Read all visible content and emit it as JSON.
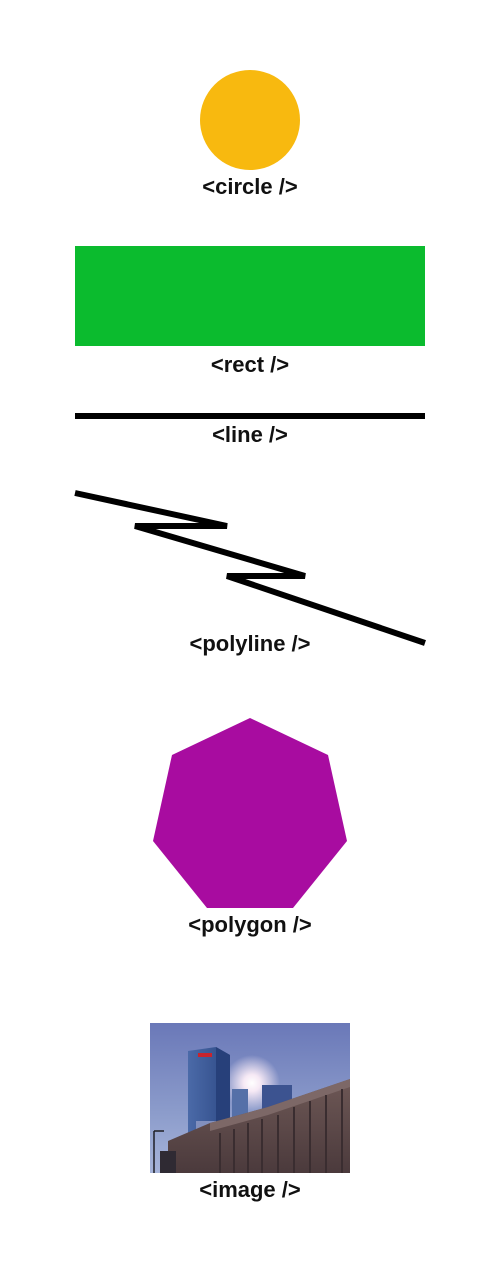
{
  "colors": {
    "circle": "#F8B90F",
    "rect": "#0BBB2E",
    "line": "#000000",
    "polyline": "#000000",
    "polygon": "#A80CA0"
  },
  "labels": {
    "circle": "<circle />",
    "rect": "<rect />",
    "line": "<line />",
    "polyline": "<polyline />",
    "polygon": "<polygon />",
    "image": "<image />"
  },
  "image": {
    "subject": "city-buildings-photo"
  }
}
